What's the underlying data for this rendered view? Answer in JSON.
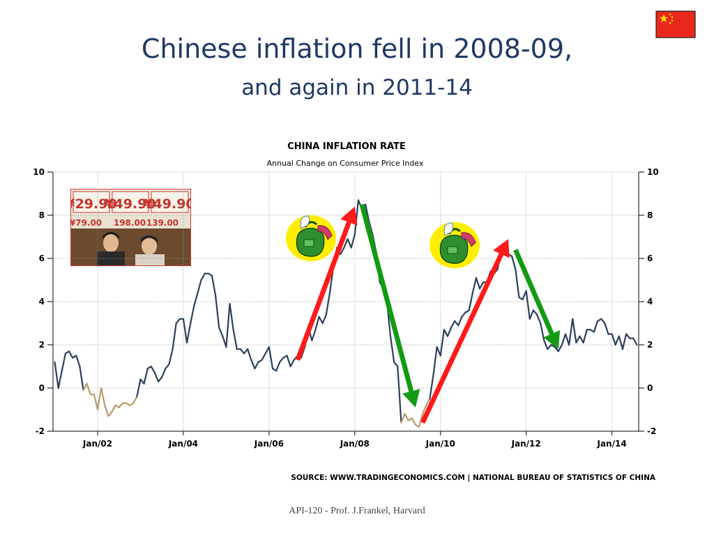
{
  "slide": {
    "title": "Chinese inflation fell in 2008-09,",
    "subtitle": "and again in 2011-14",
    "footer": "API-120 -  Prof. J.Frankel, Harvard"
  },
  "images": {
    "flag": "china-flag",
    "photo": "shoppers-price-signs-photo",
    "photo_price_labels": [
      "¥29.90",
      "¥49.90",
      "¥49.90",
      "¥79.00",
      "198.00",
      "139.00"
    ],
    "icon_high": "money-bag-rising-icon",
    "icon_low": "money-bag-rising-icon"
  },
  "chart_data": {
    "type": "line",
    "title": "CHINA INFLATION RATE",
    "subtitle": "Annual Change on Consumer Price Index",
    "source": "SOURCE: WWW.TRADINGECONOMICS.COM  |  NATIONAL BUREAU OF STATISTICS OF CHINA",
    "ylim": [
      -2,
      10
    ],
    "yticks": [
      -2,
      0,
      2,
      4,
      6,
      8,
      10
    ],
    "xlim": [
      "2001-01",
      "2014-08"
    ],
    "xtick_labels": [
      "Jan/02",
      "Jan/04",
      "Jan/06",
      "Jan/08",
      "Jan/10",
      "Jan/12",
      "Jan/14"
    ],
    "xtick_dates": [
      "2002-01",
      "2004-01",
      "2006-01",
      "2008-01",
      "2010-01",
      "2012-01",
      "2014-01"
    ],
    "grid": true,
    "colors": {
      "line": "#2b3f5c",
      "negative_segment": "#b89a6a",
      "up_arrow": "#ff1a1a",
      "down_arrow": "#139a13"
    },
    "series": [
      {
        "points": [
          [
            "2001-01",
            1.2
          ],
          [
            "2001-02",
            0.0
          ],
          [
            "2001-03",
            0.8
          ],
          [
            "2001-04",
            1.6
          ],
          [
            "2001-05",
            1.7
          ],
          [
            "2001-06",
            1.4
          ],
          [
            "2001-07",
            1.5
          ],
          [
            "2001-08",
            1.0
          ],
          [
            "2001-09",
            -0.1
          ],
          [
            "2001-10",
            0.2
          ],
          [
            "2001-11",
            -0.3
          ],
          [
            "2001-12",
            -0.3
          ],
          [
            "2002-01",
            -1.0
          ],
          [
            "2002-02",
            0.0
          ],
          [
            "2002-03",
            -0.8
          ],
          [
            "2002-04",
            -1.3
          ],
          [
            "2002-05",
            -1.1
          ],
          [
            "2002-06",
            -0.8
          ],
          [
            "2002-07",
            -0.9
          ],
          [
            "2002-08",
            -0.7
          ],
          [
            "2002-09",
            -0.7
          ],
          [
            "2002-10",
            -0.8
          ],
          [
            "2002-11",
            -0.7
          ],
          [
            "2002-12",
            -0.4
          ],
          [
            "2003-01",
            0.4
          ],
          [
            "2003-02",
            0.2
          ],
          [
            "2003-03",
            0.9
          ],
          [
            "2003-04",
            1.0
          ],
          [
            "2003-05",
            0.7
          ],
          [
            "2003-06",
            0.3
          ],
          [
            "2003-07",
            0.5
          ],
          [
            "2003-08",
            0.9
          ],
          [
            "2003-09",
            1.1
          ],
          [
            "2003-10",
            1.8
          ],
          [
            "2003-11",
            3.0
          ],
          [
            "2003-12",
            3.2
          ],
          [
            "2004-01",
            3.2
          ],
          [
            "2004-02",
            2.1
          ],
          [
            "2004-03",
            3.0
          ],
          [
            "2004-04",
            3.8
          ],
          [
            "2004-05",
            4.4
          ],
          [
            "2004-06",
            5.0
          ],
          [
            "2004-07",
            5.3
          ],
          [
            "2004-08",
            5.3
          ],
          [
            "2004-09",
            5.2
          ],
          [
            "2004-10",
            4.3
          ],
          [
            "2004-11",
            2.8
          ],
          [
            "2004-12",
            2.4
          ],
          [
            "2005-01",
            1.9
          ],
          [
            "2005-02",
            3.9
          ],
          [
            "2005-03",
            2.7
          ],
          [
            "2005-04",
            1.8
          ],
          [
            "2005-05",
            1.8
          ],
          [
            "2005-06",
            1.6
          ],
          [
            "2005-07",
            1.8
          ],
          [
            "2005-08",
            1.3
          ],
          [
            "2005-09",
            0.9
          ],
          [
            "2005-10",
            1.2
          ],
          [
            "2005-11",
            1.3
          ],
          [
            "2005-12",
            1.6
          ],
          [
            "2006-01",
            1.9
          ],
          [
            "2006-02",
            0.9
          ],
          [
            "2006-03",
            0.8
          ],
          [
            "2006-04",
            1.2
          ],
          [
            "2006-05",
            1.4
          ],
          [
            "2006-06",
            1.5
          ],
          [
            "2006-07",
            1.0
          ],
          [
            "2006-08",
            1.3
          ],
          [
            "2006-09",
            1.5
          ],
          [
            "2006-10",
            1.4
          ],
          [
            "2006-11",
            1.9
          ],
          [
            "2006-12",
            2.8
          ],
          [
            "2007-01",
            2.2
          ],
          [
            "2007-02",
            2.7
          ],
          [
            "2007-03",
            3.3
          ],
          [
            "2007-04",
            3.0
          ],
          [
            "2007-05",
            3.4
          ],
          [
            "2007-06",
            4.4
          ],
          [
            "2007-07",
            5.6
          ],
          [
            "2007-08",
            6.5
          ],
          [
            "2007-09",
            6.2
          ],
          [
            "2007-10",
            6.5
          ],
          [
            "2007-11",
            6.9
          ],
          [
            "2007-12",
            6.5
          ],
          [
            "2008-01",
            7.1
          ],
          [
            "2008-02",
            8.7
          ],
          [
            "2008-03",
            8.3
          ],
          [
            "2008-04",
            8.5
          ],
          [
            "2008-05",
            7.7
          ],
          [
            "2008-06",
            7.1
          ],
          [
            "2008-07",
            6.3
          ],
          [
            "2008-08",
            4.9
          ],
          [
            "2008-09",
            4.6
          ],
          [
            "2008-10",
            4.0
          ],
          [
            "2008-11",
            2.4
          ],
          [
            "2008-12",
            1.2
          ],
          [
            "2009-01",
            1.0
          ],
          [
            "2009-02",
            -1.6
          ],
          [
            "2009-03",
            -1.2
          ],
          [
            "2009-04",
            -1.5
          ],
          [
            "2009-05",
            -1.4
          ],
          [
            "2009-06",
            -1.7
          ],
          [
            "2009-07",
            -1.8
          ],
          [
            "2009-08",
            -1.2
          ],
          [
            "2009-09",
            -0.8
          ],
          [
            "2009-10",
            -0.5
          ],
          [
            "2009-11",
            0.6
          ],
          [
            "2009-12",
            1.9
          ],
          [
            "2010-01",
            1.5
          ],
          [
            "2010-02",
            2.7
          ],
          [
            "2010-03",
            2.4
          ],
          [
            "2010-04",
            2.8
          ],
          [
            "2010-05",
            3.1
          ],
          [
            "2010-06",
            2.9
          ],
          [
            "2010-07",
            3.3
          ],
          [
            "2010-08",
            3.5
          ],
          [
            "2010-09",
            3.6
          ],
          [
            "2010-10",
            4.4
          ],
          [
            "2010-11",
            5.1
          ],
          [
            "2010-12",
            4.6
          ],
          [
            "2011-01",
            4.9
          ],
          [
            "2011-02",
            4.9
          ],
          [
            "2011-03",
            5.4
          ],
          [
            "2011-04",
            5.3
          ],
          [
            "2011-05",
            5.5
          ],
          [
            "2011-06",
            6.4
          ],
          [
            "2011-07",
            6.5
          ],
          [
            "2011-08",
            6.2
          ],
          [
            "2011-09",
            6.1
          ],
          [
            "2011-10",
            5.5
          ],
          [
            "2011-11",
            4.2
          ],
          [
            "2011-12",
            4.1
          ],
          [
            "2012-01",
            4.5
          ],
          [
            "2012-02",
            3.2
          ],
          [
            "2012-03",
            3.6
          ],
          [
            "2012-04",
            3.4
          ],
          [
            "2012-05",
            3.0
          ],
          [
            "2012-06",
            2.2
          ],
          [
            "2012-07",
            1.8
          ],
          [
            "2012-08",
            2.0
          ],
          [
            "2012-09",
            1.9
          ],
          [
            "2012-10",
            1.7
          ],
          [
            "2012-11",
            2.0
          ],
          [
            "2012-12",
            2.5
          ],
          [
            "2013-01",
            2.0
          ],
          [
            "2013-02",
            3.2
          ],
          [
            "2013-03",
            2.1
          ],
          [
            "2013-04",
            2.4
          ],
          [
            "2013-05",
            2.1
          ],
          [
            "2013-06",
            2.7
          ],
          [
            "2013-07",
            2.7
          ],
          [
            "2013-08",
            2.6
          ],
          [
            "2013-09",
            3.1
          ],
          [
            "2013-10",
            3.2
          ],
          [
            "2013-11",
            3.0
          ],
          [
            "2013-12",
            2.5
          ],
          [
            "2014-01",
            2.5
          ],
          [
            "2014-02",
            2.0
          ],
          [
            "2014-03",
            2.4
          ],
          [
            "2014-04",
            1.8
          ],
          [
            "2014-05",
            2.5
          ],
          [
            "2014-06",
            2.3
          ],
          [
            "2014-07",
            2.3
          ],
          [
            "2014-08",
            2.0
          ]
        ]
      }
    ],
    "annotations": [
      {
        "type": "arrow",
        "direction": "up",
        "color": "red",
        "from": [
          "2006-09",
          1.3
        ],
        "to": [
          "2008-01",
          8.4
        ]
      },
      {
        "type": "arrow",
        "direction": "down",
        "color": "green",
        "from": [
          "2008-03",
          8.5
        ],
        "to": [
          "2009-06",
          -0.9
        ]
      },
      {
        "type": "arrow",
        "direction": "up",
        "color": "red",
        "from": [
          "2009-08",
          -1.6
        ],
        "to": [
          "2011-08",
          6.9
        ]
      },
      {
        "type": "arrow",
        "direction": "down",
        "color": "green",
        "from": [
          "2011-10",
          6.4
        ],
        "to": [
          "2012-10",
          1.8
        ]
      }
    ]
  }
}
